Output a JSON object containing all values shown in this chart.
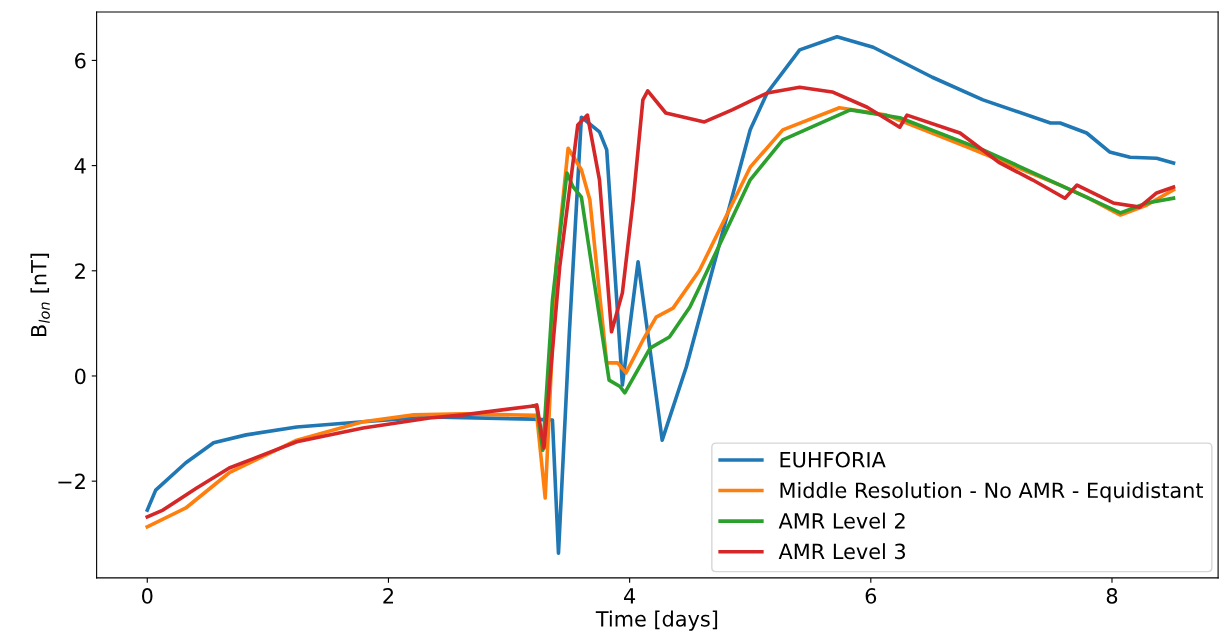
{
  "chart_data": {
    "type": "line",
    "xlabel": "Time [days]",
    "ylabel": "B$_{lon}$ [nT]",
    "xlim": [
      -0.42,
      8.88
    ],
    "ylim": [
      -3.84,
      6.92
    ],
    "xticks": [
      0,
      2,
      4,
      6,
      8
    ],
    "yticks": [
      -2,
      0,
      2,
      4,
      6
    ],
    "grid": false,
    "legend": "bottom right",
    "line_style": "solid",
    "marker": "none",
    "series": [
      {
        "name": "EUHFORIA",
        "color": "#1f77b4",
        "x": [
          0,
          0.07,
          0.32,
          0.55,
          0.82,
          1.24,
          1.79,
          2.34,
          3.2,
          3.36,
          3.41,
          3.5,
          3.6,
          3.75,
          3.81,
          3.94,
          4.07,
          4.15,
          4.27,
          4.47,
          5.0,
          5.14,
          5.41,
          5.72,
          6.02,
          6.51,
          6.93,
          7.49,
          7.57,
          7.79,
          7.98,
          8.15,
          8.37,
          8.51
        ],
        "values": [
          -2.55,
          -2.17,
          -1.65,
          -1.27,
          -1.12,
          -0.97,
          -0.87,
          -0.78,
          -0.82,
          -0.84,
          -3.37,
          0.82,
          4.92,
          4.64,
          4.3,
          -0.17,
          2.17,
          0.82,
          -1.22,
          0.17,
          4.68,
          5.38,
          6.2,
          6.45,
          6.25,
          5.68,
          5.25,
          4.81,
          4.81,
          4.62,
          4.26,
          4.16,
          4.14,
          4.05
        ]
      },
      {
        "name": "Middle Resolution - No AMR - Equidistant",
        "color": "#ff7f0e",
        "x": [
          0,
          0.32,
          0.68,
          1.24,
          1.79,
          2.21,
          2.62,
          3.23,
          3.3,
          3.39,
          3.49,
          3.6,
          3.67,
          3.81,
          3.9,
          3.97,
          4.11,
          4.22,
          4.36,
          4.58,
          5.0,
          5.27,
          5.74,
          6.13,
          6.8,
          7.57,
          7.79,
          8.07,
          8.29,
          8.51
        ],
        "values": [
          -2.87,
          -2.51,
          -1.84,
          -1.22,
          -0.87,
          -0.74,
          -0.72,
          -0.75,
          -2.32,
          2.07,
          4.33,
          3.92,
          3.35,
          0.25,
          0.25,
          0.06,
          0.68,
          1.12,
          1.29,
          2.01,
          3.97,
          4.68,
          5.1,
          4.96,
          4.35,
          3.63,
          3.4,
          3.06,
          3.25,
          3.54
        ]
      },
      {
        "name": "AMR Level 2",
        "color": "#2ca02c",
        "x": [
          3.2,
          3.23,
          3.28,
          3.36,
          3.48,
          3.53,
          3.6,
          3.75,
          3.83,
          3.92,
          3.96,
          4.17,
          4.33,
          4.5,
          4.58,
          5.0,
          5.27,
          5.83,
          6.24,
          6.93,
          7.57,
          8.07,
          8.29,
          8.51
        ],
        "values": [
          -0.57,
          -0.59,
          -1.41,
          1.44,
          3.86,
          3.6,
          3.4,
          1.12,
          -0.08,
          -0.2,
          -0.32,
          0.53,
          0.74,
          1.31,
          1.69,
          3.73,
          4.49,
          5.06,
          4.91,
          4.3,
          3.63,
          3.1,
          3.29,
          3.38
        ]
      },
      {
        "name": "AMR Level 3",
        "color": "#d62728",
        "x": [
          0,
          0.13,
          0.41,
          0.68,
          1.24,
          1.79,
          2.34,
          2.62,
          3.2,
          3.23,
          3.29,
          3.42,
          3.57,
          3.65,
          3.75,
          3.85,
          3.94,
          4.03,
          4.11,
          4.15,
          4.3,
          4.62,
          4.85,
          5.14,
          5.41,
          5.68,
          5.97,
          6.24,
          6.3,
          6.74,
          7.07,
          7.34,
          7.61,
          7.71,
          8.01,
          8.23,
          8.37,
          8.51
        ],
        "values": [
          -2.68,
          -2.55,
          -2.13,
          -1.75,
          -1.25,
          -0.99,
          -0.8,
          -0.74,
          -0.57,
          -0.55,
          -1.37,
          2.07,
          4.77,
          4.96,
          3.73,
          0.84,
          1.58,
          3.35,
          5.25,
          5.42,
          5.0,
          4.83,
          5.06,
          5.38,
          5.49,
          5.4,
          5.11,
          4.73,
          4.96,
          4.62,
          4.05,
          3.73,
          3.38,
          3.63,
          3.29,
          3.21,
          3.48,
          3.59
        ]
      }
    ]
  }
}
